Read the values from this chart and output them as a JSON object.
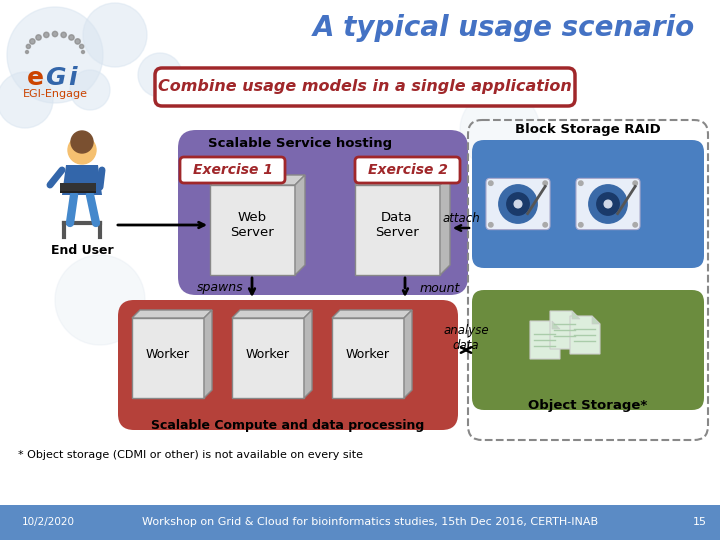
{
  "title": "A typical usage scenario",
  "subtitle": "Combine usage models in a single application",
  "bg_color": "#ffffff",
  "title_color": "#4472c4",
  "subtitle_color": "#a0272a",
  "subtitle_box_ec": "#a0272a",
  "purple_color": "#7b68ae",
  "red_color": "#b5413a",
  "blue_color": "#4a7fc1",
  "green_color": "#6b8c3e",
  "footer_bg": "#5b8bc5",
  "footer_text": "Workshop on Grid & Cloud for bioinformatics studies, 15th Dec 2016, CERTH-INAB",
  "footer_date": "10/2/2020",
  "footer_page": "15",
  "scalable_service_label": "Scalable Service hosting",
  "exercise1_label": "Exercise 1",
  "exercise2_label": "Exercise 2",
  "web_server_label": "Web\nServer",
  "data_server_label": "Data\nServer",
  "end_user_label": "End User",
  "spawns_label": "spawns",
  "mount_label": "mount",
  "attach_label": "attach",
  "analyse_label": "analyse\ndata",
  "block_storage_label": "Block Storage RAID",
  "object_storage_label": "Object Storage*",
  "scalable_compute_label": "Scalable Compute and data processing",
  "footnote": "* Object storage (CDMI or other) is not available on every site",
  "worker_label": "Worker"
}
